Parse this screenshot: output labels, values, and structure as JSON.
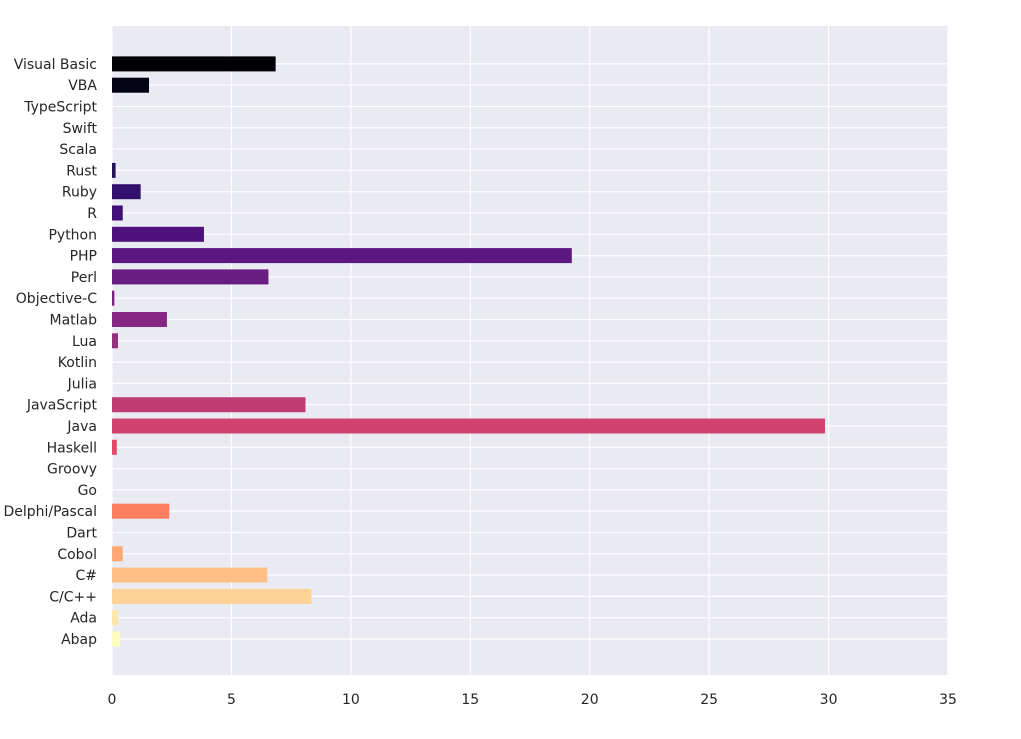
{
  "chart_data": {
    "type": "bar",
    "orientation": "horizontal",
    "title": "",
    "xlabel": "",
    "ylabel": "",
    "xlim": [
      0,
      35
    ],
    "xticks": [
      0,
      5,
      10,
      15,
      20,
      25,
      30,
      35
    ],
    "grid": true,
    "legend": "none",
    "background_color": "#EAEAF2",
    "grid_color": "#FFFFFF",
    "categories": [
      "Abap",
      "Ada",
      "C/C++",
      "C#",
      "Cobol",
      "Dart",
      "Delphi/Pascal",
      "Go",
      "Groovy",
      "Haskell",
      "Java",
      "JavaScript",
      "Julia",
      "Kotlin",
      "Lua",
      "Matlab",
      "Objective-C",
      "Perl",
      "PHP",
      "Python",
      "R",
      "Ruby",
      "Rust",
      "Scala",
      "Swift",
      "TypeScript",
      "VBA",
      "Visual Basic"
    ],
    "values": [
      0.35,
      0.25,
      8.35,
      6.5,
      0.45,
      0.0,
      2.4,
      0.0,
      0.0,
      0.2,
      29.85,
      8.1,
      0.0,
      0.0,
      0.25,
      2.3,
      0.1,
      6.55,
      19.25,
      3.85,
      0.45,
      1.2,
      0.15,
      0.0,
      0.0,
      0.0,
      1.55,
      6.85
    ],
    "colors": [
      "#FCFDBF",
      "#FDE7A9",
      "#FED395",
      "#FEBF84",
      "#FEA973",
      "#FD9668",
      "#F97F5E",
      "#F4695C",
      "#EA5661",
      "#DF4A68",
      "#D1426F",
      "#C13B75",
      "#B3367A",
      "#A3307E",
      "#94307F",
      "#862781",
      "#782281",
      "#6A1D80",
      "#5C187F",
      "#4E117B",
      "#401076",
      "#32106E",
      "#241257",
      "#1A1142",
      "#10112E",
      "#0B091F",
      "#050416",
      "#000004"
    ]
  }
}
